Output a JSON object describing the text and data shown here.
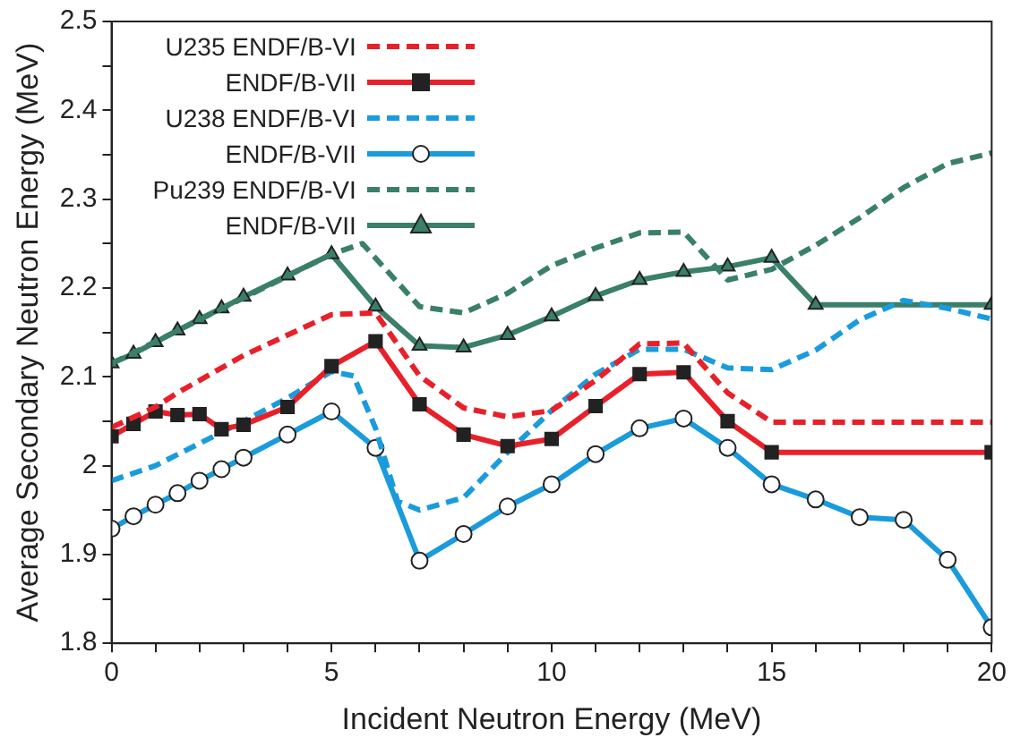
{
  "chart_data": {
    "type": "line",
    "xlabel": "Incident Neutron Energy (MeV)",
    "ylabel": "Average Secondary Neutron Energy (MeV)",
    "xlim": [
      0,
      20
    ],
    "xticks": [
      0,
      {
        "value": 1,
        "label": null
      },
      {
        "value": 2,
        "label": null
      },
      {
        "value": 3,
        "label": null
      },
      {
        "value": 4,
        "label": null
      },
      5,
      {
        "value": 6,
        "label": null
      },
      {
        "value": 7,
        "label": null
      },
      {
        "value": 8,
        "label": null
      },
      {
        "value": 9,
        "label": null
      },
      10,
      {
        "value": 11,
        "label": null
      },
      {
        "value": 12,
        "label": null
      },
      {
        "value": 13,
        "label": null
      },
      {
        "value": 14,
        "label": null
      },
      15,
      {
        "value": 16,
        "label": null
      },
      {
        "value": 17,
        "label": null
      },
      {
        "value": 18,
        "label": null
      },
      {
        "value": 19,
        "label": null
      },
      20
    ],
    "ylim": [
      1.8,
      2.5
    ],
    "yticks": [
      1.8,
      {
        "value": 1.85,
        "label": null
      },
      1.9,
      {
        "value": 1.95,
        "label": null
      },
      2,
      {
        "value": 2.05,
        "label": null
      },
      2.1,
      {
        "value": 2.15,
        "label": null
      },
      2.2,
      {
        "value": 2.25,
        "label": null
      },
      2.3,
      {
        "value": 2.35,
        "label": null
      },
      2.4,
      {
        "value": 2.45,
        "label": null
      },
      2.5
    ],
    "grid": false,
    "legend": "top left",
    "series": [
      {
        "name": "U235 ENDF/B-VI",
        "color": "#e8202a",
        "line_style": "dashed",
        "marker": "none",
        "x": [
          0,
          1,
          1.5,
          3,
          5,
          6,
          7,
          8,
          9,
          10,
          11,
          12,
          13,
          14,
          15,
          20
        ],
        "values": [
          2.043,
          2.066,
          2.082,
          2.124,
          2.17,
          2.172,
          2.101,
          2.065,
          2.055,
          2.062,
          2.096,
          2.137,
          2.138,
          2.082,
          2.049,
          2.049
        ]
      },
      {
        "name": "ENDF/B-VII",
        "color": "#e8202a",
        "line_style": "solid",
        "marker": "square",
        "x": [
          0,
          0.5,
          1,
          1.5,
          2,
          2.5,
          3,
          4,
          5,
          6,
          7,
          8,
          9,
          10,
          11,
          12,
          13,
          14,
          15,
          20
        ],
        "values": [
          2.033,
          2.047,
          2.061,
          2.057,
          2.058,
          2.041,
          2.046,
          2.066,
          2.112,
          2.14,
          2.069,
          2.035,
          2.022,
          2.03,
          2.067,
          2.103,
          2.105,
          2.05,
          2.015,
          2.015
        ]
      },
      {
        "name": "U238 ENDF/B-VI",
        "color": "#1a9bdc",
        "line_style": "dashed",
        "marker": "none",
        "x": [
          0,
          1,
          2,
          3,
          4,
          5,
          5.5,
          6,
          6.5,
          7,
          8,
          9,
          10,
          11,
          12,
          13,
          14,
          15,
          16,
          17,
          18,
          19,
          20
        ],
        "values": [
          1.983,
          2.0,
          2.025,
          2.05,
          2.076,
          2.106,
          2.101,
          2.042,
          1.96,
          1.95,
          1.964,
          2.015,
          2.062,
          2.103,
          2.131,
          2.131,
          2.11,
          2.108,
          2.13,
          2.164,
          2.186,
          2.177,
          2.165
        ]
      },
      {
        "name": "ENDF/B-VII",
        "color": "#1a9bdc",
        "line_style": "solid",
        "marker": "circle",
        "x": [
          0,
          0.5,
          1,
          1.5,
          2,
          2.5,
          3,
          4,
          5,
          6,
          7,
          8,
          9,
          10,
          11,
          12,
          13,
          14,
          15,
          16,
          17,
          18,
          19,
          20
        ],
        "values": [
          1.929,
          1.943,
          1.956,
          1.969,
          1.983,
          1.996,
          2.009,
          2.035,
          2.061,
          2.02,
          1.893,
          1.923,
          1.954,
          1.979,
          2.013,
          2.042,
          2.053,
          2.02,
          1.979,
          1.962,
          1.942,
          1.939,
          1.894,
          1.818
        ]
      },
      {
        "name": "Pu239 ENDF/B-VI",
        "color": "#3a7f6a",
        "line_style": "dashed",
        "marker": "none",
        "x": [
          0,
          5,
          5.7,
          7,
          8,
          9,
          10,
          11,
          12,
          13,
          14,
          15,
          16,
          17,
          18,
          19,
          20
        ],
        "values": [
          2.115,
          2.238,
          2.25,
          2.179,
          2.172,
          2.194,
          2.225,
          2.245,
          2.262,
          2.263,
          2.209,
          2.221,
          2.248,
          2.279,
          2.313,
          2.34,
          2.352
        ]
      },
      {
        "name": "ENDF/B-VII",
        "color": "#3a7f6a",
        "line_style": "solid",
        "marker": "triangle",
        "x": [
          0,
          0.5,
          1,
          1.5,
          2,
          2.5,
          3,
          4,
          5,
          6,
          7,
          8,
          9,
          10,
          11,
          12,
          13,
          14,
          15,
          16,
          20
        ],
        "values": [
          2.115,
          2.126,
          2.139,
          2.152,
          2.165,
          2.177,
          2.19,
          2.214,
          2.238,
          2.179,
          2.135,
          2.133,
          2.147,
          2.168,
          2.191,
          2.209,
          2.218,
          2.224,
          2.234,
          2.181,
          2.181
        ]
      }
    ]
  }
}
